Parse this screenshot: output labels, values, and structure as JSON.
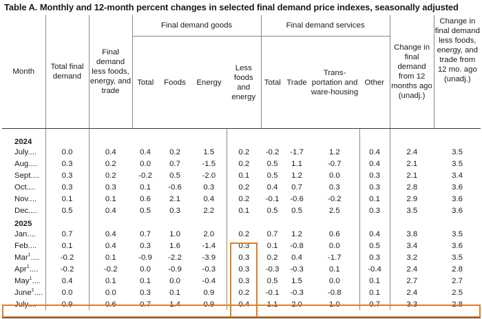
{
  "title": "Table A. Monthly and 12-month percent changes in selected final demand price indexes, seasonally adjusted",
  "headers": {
    "month": "Month",
    "total_final_demand": "Total final demand",
    "fd_less": "Final demand less foods, energy, and trade",
    "goods_group": "Final demand goods",
    "goods_total": "Total",
    "goods_foods": "Foods",
    "goods_energy": "Energy",
    "goods_less": "Less foods and energy",
    "services_group": "Final demand services",
    "services_total": "Total",
    "services_trade": "Trade",
    "services_transport": "Trans-portation and ware-housing",
    "services_other": "Other",
    "change_12m": "Change in final demand from 12 months ago (unadj.)",
    "change_12m_less": "Change in final demand less foods, energy, and trade from 12 mo. ago (unadj.)"
  },
  "years": [
    "2024",
    "2025"
  ],
  "rows_2024": [
    {
      "month": "July",
      "dots": "....",
      "sup": "",
      "values": [
        "0.0",
        "0.4",
        "0.4",
        "0.2",
        "1.5",
        "0.2",
        "-0.2",
        "-1.7",
        "1.2",
        "0.4",
        "2.4",
        "3.5"
      ]
    },
    {
      "month": "Aug",
      "dots": "....",
      "sup": "",
      "values": [
        "0.3",
        "0.2",
        "0.0",
        "0.7",
        "-1.5",
        "0.2",
        "0.5",
        "1.1",
        "-0.7",
        "0.4",
        "2.1",
        "3.5"
      ]
    },
    {
      "month": "Sept",
      "dots": "....",
      "sup": "",
      "values": [
        "0.3",
        "0.2",
        "-0.2",
        "0.5",
        "-2.0",
        "0.1",
        "0.5",
        "1.2",
        "0.0",
        "0.3",
        "2.1",
        "3.4"
      ]
    },
    {
      "month": "Oct",
      "dots": "....",
      "sup": "",
      "values": [
        "0.3",
        "0.3",
        "0.1",
        "-0.6",
        "0.3",
        "0.2",
        "0.4",
        "0.7",
        "0.3",
        "0.3",
        "2.8",
        "3.6"
      ]
    },
    {
      "month": "Nov",
      "dots": "....",
      "sup": "",
      "values": [
        "0.1",
        "0.1",
        "0.6",
        "2.1",
        "0.4",
        "0.2",
        "-0.1",
        "-0.6",
        "-0.2",
        "0.1",
        "2.9",
        "3.6"
      ]
    },
    {
      "month": "Dec",
      "dots": "....",
      "sup": "",
      "values": [
        "0.5",
        "0.4",
        "0.5",
        "0.3",
        "2.2",
        "0.1",
        "0.5",
        "0.5",
        "2.5",
        "0.3",
        "3.5",
        "3.6"
      ]
    }
  ],
  "rows_2025": [
    {
      "month": "Jan",
      "dots": "....",
      "sup": "",
      "values": [
        "0.7",
        "0.4",
        "0.7",
        "1.0",
        "2.0",
        "0.2",
        "0.7",
        "1.2",
        "0.6",
        "0.4",
        "3.8",
        "3.5"
      ]
    },
    {
      "month": "Feb",
      "dots": "....",
      "sup": "",
      "values": [
        "0.1",
        "0.4",
        "0.3",
        "1.6",
        "-1.4",
        "0.3",
        "0.1",
        "-0.8",
        "0.0",
        "0.5",
        "3.4",
        "3.6"
      ]
    },
    {
      "month": "Mar",
      "dots": "....",
      "sup": "1",
      "values": [
        "-0.2",
        "0.1",
        "-0.9",
        "-2.2",
        "-3.9",
        "0.3",
        "0.2",
        "0.4",
        "-1.7",
        "0.3",
        "3.2",
        "3.5"
      ]
    },
    {
      "month": "Apr",
      "dots": "....",
      "sup": "1",
      "values": [
        "-0.2",
        "-0.2",
        "0.0",
        "-0.9",
        "-0.3",
        "0.3",
        "-0.3",
        "-0.3",
        "0.1",
        "-0.4",
        "2.4",
        "2.8"
      ]
    },
    {
      "month": "May",
      "dots": "....",
      "sup": "1",
      "values": [
        "0.4",
        "0.1",
        "0.1",
        "0.0",
        "-0.4",
        "0.3",
        "0.5",
        "1.5",
        "0.0",
        "0.1",
        "2.7",
        "2.7"
      ]
    },
    {
      "month": "June",
      "dots": "....",
      "sup": "1",
      "values": [
        "0.0",
        "0.0",
        "0.3",
        "0.1",
        "0.9",
        "0.2",
        "-0.1",
        "-0.3",
        "-0.8",
        "0.1",
        "2.4",
        "2.5"
      ]
    },
    {
      "month": "July",
      "dots": "....",
      "sup": "",
      "values": [
        "0.9",
        "0.6",
        "0.7",
        "1.4",
        "0.9",
        "0.4",
        "1.1",
        "2.0",
        "1.0",
        "0.7",
        "3.3",
        "2.8"
      ]
    }
  ],
  "highlight_color": "#e07c22"
}
